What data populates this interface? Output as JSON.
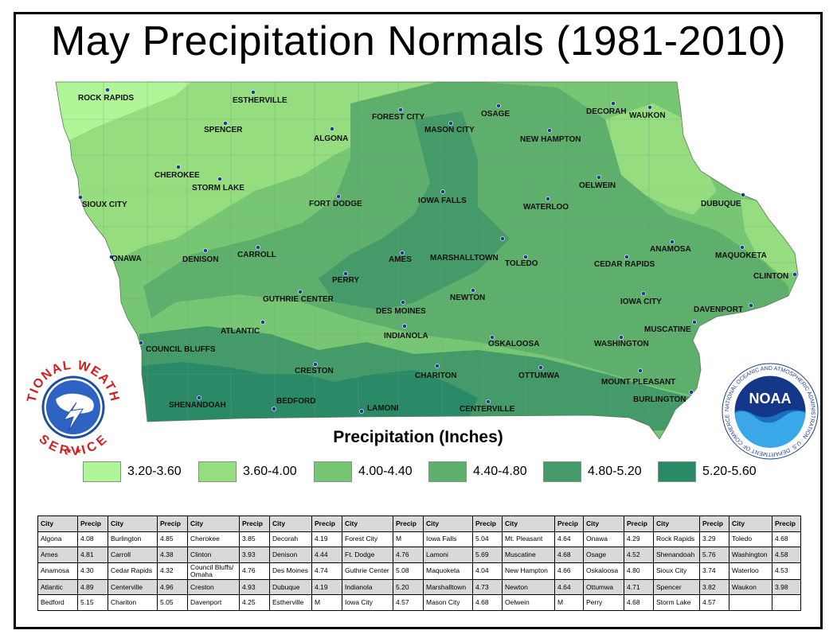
{
  "title": "May Precipitation Normals (1981-2010)",
  "legend": {
    "title": "Precipitation (Inches)",
    "items": [
      {
        "label": "3.20-3.60",
        "color": "#b0f598"
      },
      {
        "label": "3.60-4.00",
        "color": "#95dd7f"
      },
      {
        "label": "4.00-4.40",
        "color": "#77c673"
      },
      {
        "label": "4.40-4.80",
        "color": "#5eae6c"
      },
      {
        "label": "4.80-5.20",
        "color": "#449a68"
      },
      {
        "label": "5.20-5.60",
        "color": "#2a8a68"
      }
    ]
  },
  "cities": [
    "ROCK RAPIDS",
    "ESTHERVILLE",
    "SPENCER",
    "ALGONA",
    "FOREST CITY",
    "MASON CITY",
    "OSAGE",
    "DECORAH",
    "WAUKON",
    "NEW HAMPTON",
    "CHEROKEE",
    "STORM LAKE",
    "SIOUX CITY",
    "FORT DODGE",
    "IOWA FALLS",
    "WATERLOO",
    "OELWEIN",
    "DUBUQUE",
    "ONAWA",
    "DENISON",
    "CARROLL",
    "AMES",
    "MARSHALLTOWN",
    "TOLEDO",
    "CEDAR RAPIDS",
    "ANAMOSA",
    "MAQUOKETA",
    "CLINTON",
    "PERRY",
    "GUTHRIE CENTER",
    "DES MOINES",
    "NEWTON",
    "IOWA CITY",
    "DAVENPORT",
    "ATLANTIC",
    "INDIANOLA",
    "MUSCATINE",
    "COUNCIL BLUFFS",
    "OSKALOOSA",
    "WASHINGTON",
    "CRESTON",
    "CHARITON",
    "OTTUMWA",
    "MOUNT PLEASANT",
    "SHENANDOAH",
    "BEDFORD",
    "LAMONI",
    "CENTERVILLE",
    "BURLINGTON"
  ],
  "logos": {
    "nws_text": "NATIONAL WEATHER SERVICE",
    "noaa_text": "NOAA",
    "noaa_ring_text": "NATIONAL OCEANIC AND ATMOSPHERIC ADMINISTRATION · U.S. DEPARTMENT OF COMMERCE"
  },
  "table": {
    "headers": [
      "City",
      "Precip",
      "City",
      "Precip",
      "City",
      "Precip",
      "City",
      "Precip",
      "City",
      "Precip",
      "City",
      "Precip",
      "City",
      "Precip",
      "City",
      "Precip",
      "City",
      "Precip",
      "City",
      "Precip"
    ],
    "rows": [
      [
        "Algona",
        "4.08",
        "Burlington",
        "4.85",
        "Cherokee",
        "3.85",
        "Decorah",
        "4.19",
        "Forest City",
        "M",
        "Iowa Falls",
        "5.04",
        "Mt. Pleasant",
        "4.64",
        "Onawa",
        "4.29",
        "Rock Rapids",
        "3.29",
        "Toledo",
        "4.68"
      ],
      [
        "Ames",
        "4.81",
        "Carroll",
        "4.38",
        "Clinton",
        "3.93",
        "Denison",
        "4.44",
        "Ft. Dodge",
        "4.76",
        "Lamoni",
        "5.69",
        "Muscatine",
        "4.68",
        "Osage",
        "4.52",
        "Shenandoah",
        "5.76",
        "Washington",
        "4.58"
      ],
      [
        "Anamosa",
        "4.30",
        "Cedar Rapids",
        "4.32",
        "Council Bluffs/ Omaha",
        "4.76",
        "Des Moines",
        "4.74",
        "Guthrie Center",
        "5.08",
        "Maquoketa",
        "4.04",
        "New Hampton",
        "4.66",
        "Oskaloosa",
        "4.80",
        "Sioux City",
        "3.74",
        "Waterloo",
        "4.53"
      ],
      [
        "Atlantic",
        "4.89",
        "Centerville",
        "4.96",
        "Creston",
        "4.93",
        "Dubuque",
        "4.19",
        "Indianola",
        "5.20",
        "Marshalltown",
        "4.73",
        "Newton",
        "4.64",
        "Ottumwa",
        "4.71",
        "Spencer",
        "3.82",
        "Waukon",
        "3.98"
      ],
      [
        "Bedford",
        "5.15",
        "Chariton",
        "5.05",
        "Davenport",
        "4.25",
        "Estherville",
        "M",
        "Iowa City",
        "4.57",
        "Mason City",
        "4.68",
        "Oelwein",
        "M",
        "Perry",
        "4.68",
        "Storm Lake",
        "4.57",
        "",
        ""
      ]
    ]
  }
}
